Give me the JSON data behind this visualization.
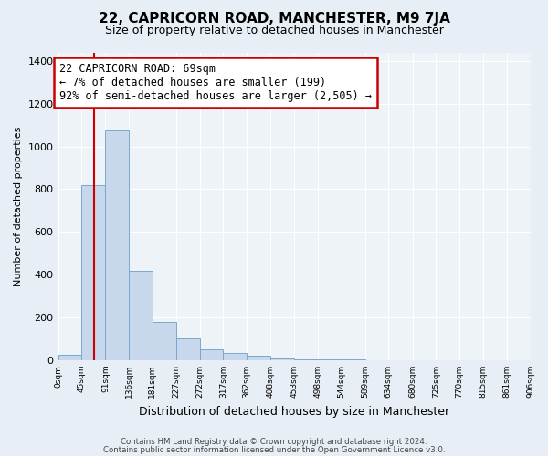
{
  "title": "22, CAPRICORN ROAD, MANCHESTER, M9 7JA",
  "subtitle": "Size of property relative to detached houses in Manchester",
  "xlabel": "Distribution of detached houses by size in Manchester",
  "ylabel": "Number of detached properties",
  "bar_values": [
    25,
    820,
    1075,
    420,
    180,
    100,
    50,
    35,
    20,
    10,
    5,
    3,
    2,
    0,
    0,
    0,
    0,
    0,
    0,
    0
  ],
  "bin_edges": [
    0,
    45,
    91,
    136,
    181,
    227,
    272,
    317,
    362,
    408,
    453,
    498,
    544,
    589,
    634,
    680,
    725,
    770,
    815,
    861,
    906
  ],
  "tick_labels": [
    "0sqm",
    "45sqm",
    "91sqm",
    "136sqm",
    "181sqm",
    "227sqm",
    "272sqm",
    "317sqm",
    "362sqm",
    "408sqm",
    "453sqm",
    "498sqm",
    "544sqm",
    "589sqm",
    "634sqm",
    "680sqm",
    "725sqm",
    "770sqm",
    "815sqm",
    "861sqm",
    "906sqm"
  ],
  "bar_color": "#c8d8ec",
  "bar_edge_color": "#7aa8cc",
  "vline_x": 69,
  "vline_color": "#cc0000",
  "ylim": [
    0,
    1440
  ],
  "yticks": [
    0,
    200,
    400,
    600,
    800,
    1000,
    1200,
    1400
  ],
  "annotation_title": "22 CAPRICORN ROAD: 69sqm",
  "annotation_line1": "← 7% of detached houses are smaller (199)",
  "annotation_line2": "92% of semi-detached houses are larger (2,505) →",
  "annotation_box_color": "#cc0000",
  "footer_line1": "Contains HM Land Registry data © Crown copyright and database right 2024.",
  "footer_line2": "Contains public sector information licensed under the Open Government Licence v3.0.",
  "bg_color": "#e8eef5",
  "plot_bg_color": "#eef3f8",
  "grid_color": "#ffffff",
  "title_fontsize": 11,
  "subtitle_fontsize": 9,
  "ylabel_fontsize": 8,
  "xlabel_fontsize": 9
}
